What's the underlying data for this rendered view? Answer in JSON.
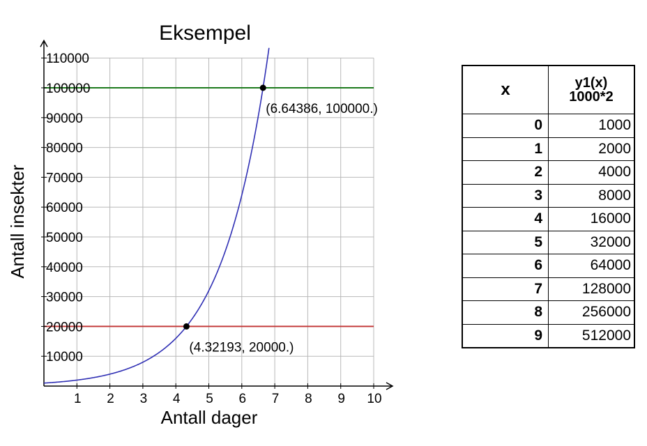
{
  "chart_data": {
    "type": "line",
    "title": "Eksempel",
    "xlabel": "Antall dager",
    "ylabel": "Antall insekter",
    "xlim": [
      0,
      10
    ],
    "ylim": [
      0,
      110000
    ],
    "x_ticks": [
      1,
      2,
      3,
      4,
      5,
      6,
      7,
      8,
      9,
      10
    ],
    "y_ticks": [
      10000,
      20000,
      30000,
      40000,
      50000,
      60000,
      70000,
      80000,
      90000,
      100000,
      110000
    ],
    "grid": true,
    "series": [
      {
        "function": "1000*2^x",
        "color": "#2f2fb4"
      },
      {
        "constant": 100000,
        "color": "#1c7a1c"
      },
      {
        "constant": 20000,
        "color": "#c43a3a"
      }
    ],
    "points": [
      {
        "x": 6.64386,
        "y": 100000,
        "label": "(6.64386, 100000.)"
      },
      {
        "x": 4.32193,
        "y": 20000,
        "label": "(4.32193, 20000.)"
      }
    ]
  },
  "table": {
    "header_x": "x",
    "header_y_line1": "y1(x)",
    "header_y_line2": "1000*2",
    "rows": [
      {
        "x": "0",
        "y": "1000"
      },
      {
        "x": "1",
        "y": "2000"
      },
      {
        "x": "2",
        "y": "4000"
      },
      {
        "x": "3",
        "y": "8000"
      },
      {
        "x": "4",
        "y": "16000"
      },
      {
        "x": "5",
        "y": "32000"
      },
      {
        "x": "6",
        "y": "64000"
      },
      {
        "x": "7",
        "y": "128000"
      },
      {
        "x": "8",
        "y": "256000"
      },
      {
        "x": "9",
        "y": "512000"
      }
    ]
  }
}
